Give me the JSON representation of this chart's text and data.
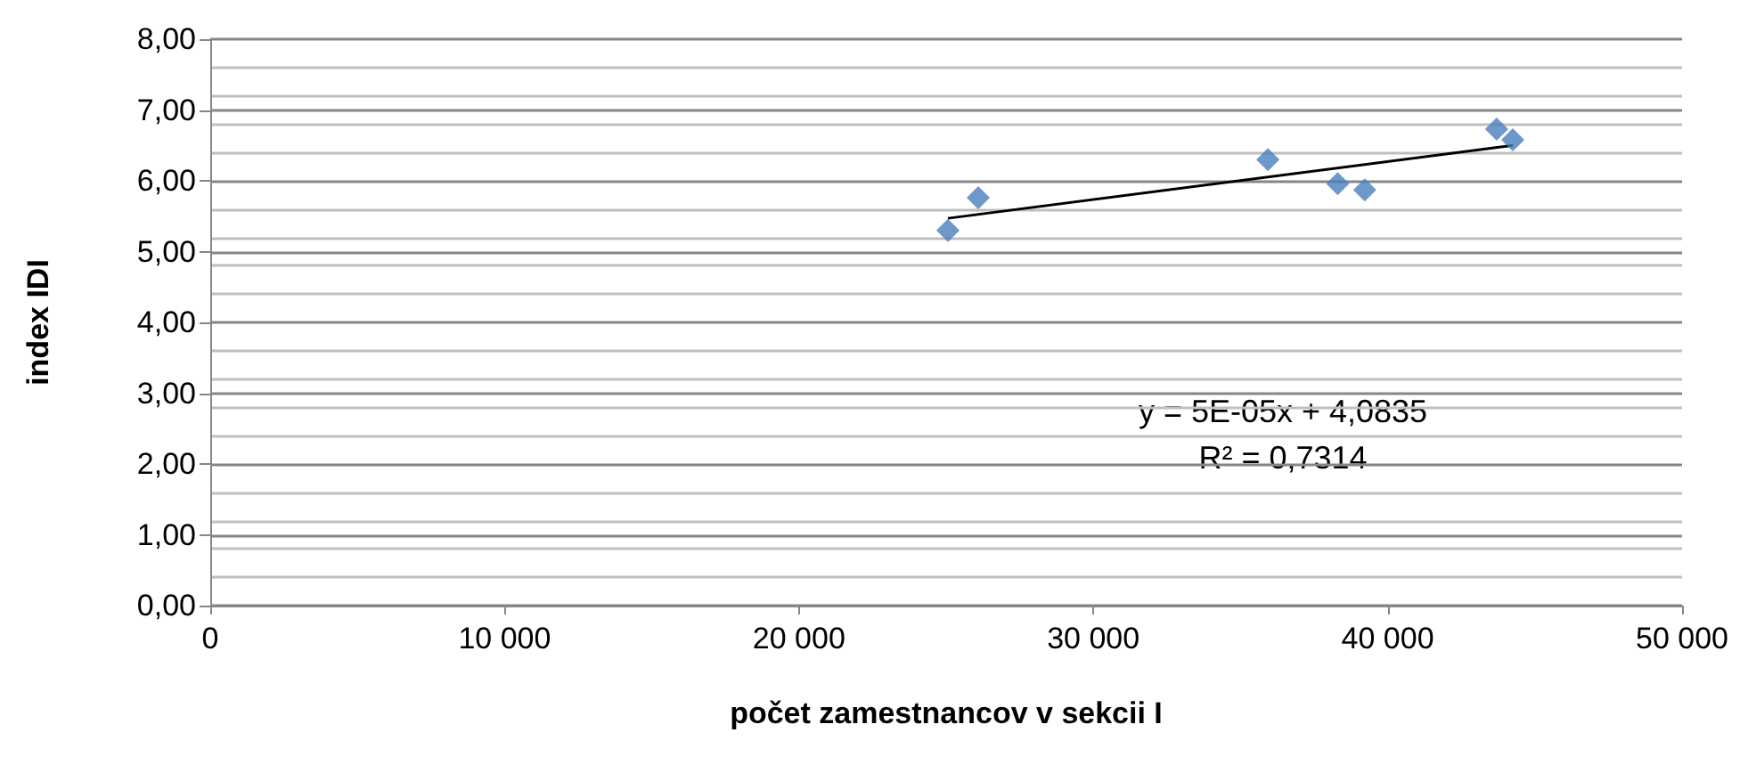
{
  "chart_data": {
    "type": "scatter",
    "xlabel": "počet zamestnancov v sekcii I",
    "ylabel": "index IDI",
    "series": [
      {
        "color": "#4a7ebb",
        "marker": "diamond",
        "x": [
          25060,
          26090,
          35930,
          38300,
          39220,
          43700,
          44250
        ],
        "values": [
          5.3,
          5.76,
          6.3,
          5.96,
          5.87,
          6.73,
          6.58
        ]
      },
      {
        "type": "line",
        "color": "#000000",
        "marker": "none",
        "x": [
          25060,
          44250
        ],
        "values": [
          5.47,
          6.5
        ]
      }
    ],
    "xlim": [
      0,
      50000
    ],
    "xticks": [
      {
        "value": 0,
        "label": "0"
      },
      {
        "value": 10000,
        "label": "10 000"
      },
      {
        "value": 20000,
        "label": "20 000"
      },
      {
        "value": 30000,
        "label": "30 000"
      },
      {
        "value": 40000,
        "label": "40 000"
      },
      {
        "value": 50000,
        "label": "50 000"
      }
    ],
    "ylim": [
      0,
      8
    ],
    "yticks": [
      {
        "value": 0,
        "label": "0,00"
      },
      {
        "value": 1,
        "label": "1,00"
      },
      {
        "value": 2,
        "label": "2,00"
      },
      {
        "value": 3,
        "label": "3,00"
      },
      {
        "value": 4,
        "label": "4,00"
      },
      {
        "value": 5,
        "label": "5,00"
      },
      {
        "value": 6,
        "label": "6,00"
      },
      {
        "value": 7,
        "label": "7,00"
      },
      {
        "value": 8,
        "label": "8,00"
      }
    ],
    "grid": "y",
    "annotations": [
      "y = 5E-05x + 4,0835",
      "R² = 0,7314"
    ]
  }
}
